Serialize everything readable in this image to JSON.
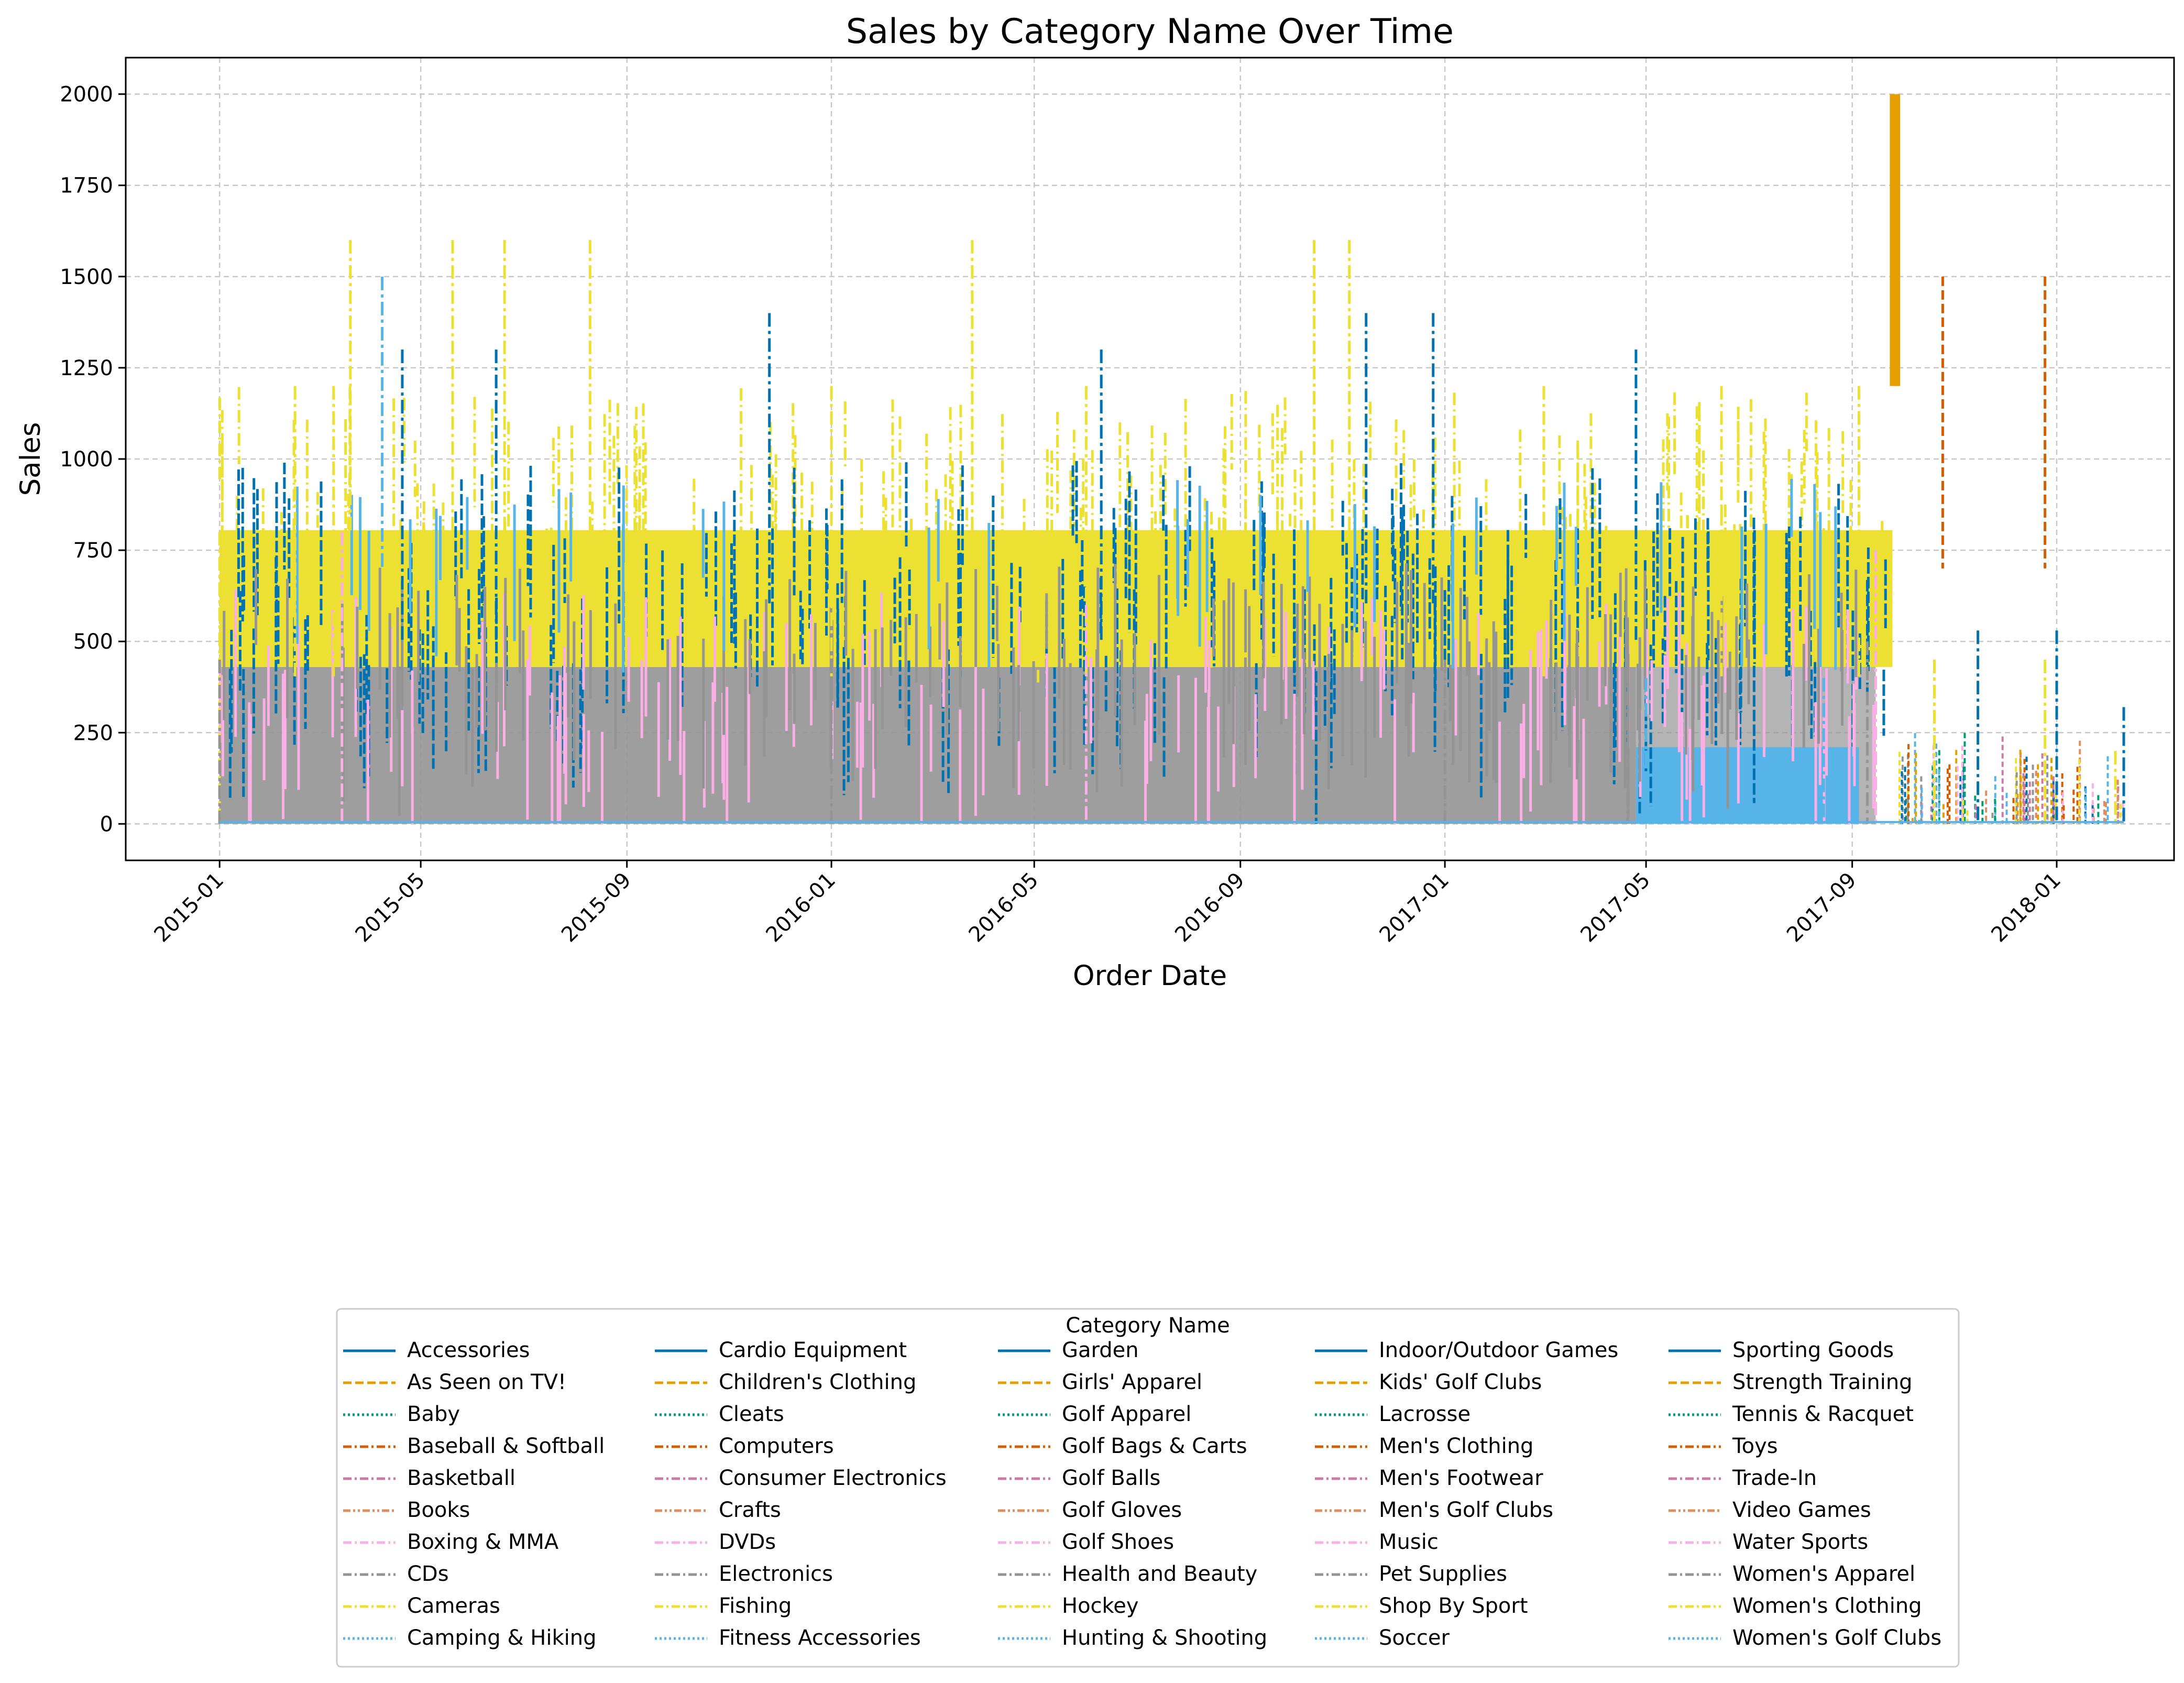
{
  "chart_data": {
    "type": "line",
    "title": "Sales by Category Name Over Time",
    "xlabel": "Order Date",
    "ylabel": "Sales",
    "x_range": [
      "2014-11-06",
      "2018-03-12"
    ],
    "ylim": [
      -100,
      2100
    ],
    "xticks": [
      "2015-01",
      "2015-05",
      "2015-09",
      "2016-01",
      "2016-05",
      "2016-09",
      "2017-01",
      "2017-05",
      "2017-09",
      "2018-01"
    ],
    "yticks": [
      0,
      250,
      500,
      750,
      1000,
      1250,
      1500,
      1750,
      2000
    ],
    "grid": true,
    "legend": {
      "title": "Category Name",
      "placement": "below-center",
      "columns": 5,
      "entries": [
        "Accessories",
        "As Seen on  TV!",
        "Baby",
        "Baseball & Softball",
        "Basketball",
        "Books",
        "Boxing & MMA",
        "CDs",
        "Cameras",
        "Camping & Hiking",
        "Cardio Equipment",
        "Children's Clothing",
        "Cleats",
        "Computers",
        "Consumer Electronics",
        "Crafts",
        "DVDs",
        "Electronics",
        "Fishing",
        "Fitness Accessories",
        "Garden",
        "Girls' Apparel",
        "Golf Apparel",
        "Golf Bags & Carts",
        "Golf Balls",
        "Golf Gloves",
        "Golf Shoes",
        "Health and Beauty",
        "Hockey",
        "Hunting & Shooting",
        "Indoor/Outdoor Games",
        "Kids' Golf Clubs",
        "Lacrosse",
        "Men's Clothing",
        "Men's Footwear",
        "Men's Golf Clubs",
        "Music",
        "Pet Supplies",
        "Shop By Sport",
        "Soccer",
        "Sporting Goods",
        "Strength Training",
        "Tennis & Racquet",
        "Toys",
        "Trade-In",
        "Video Games",
        "Water Sports",
        "Women's Apparel",
        "Women's Clothing",
        "Women's Golf Clubs"
      ]
    },
    "palette": [
      "#0072b2",
      "#e69f00",
      "#009e73",
      "#d55e00",
      "#cc79a7",
      "#de8f5f",
      "#fbafe4",
      "#949494",
      "#ece133",
      "#56b4e9"
    ],
    "dash_styles": [
      "solid",
      "dashed",
      "dotted",
      "dashdot",
      "dashdot",
      "dashdotdot",
      "dashdot",
      "dashdot",
      "dashdot",
      "dotted"
    ],
    "series": [
      {
        "name": "Cameras",
        "color": "#ece133",
        "values": [
          [
            "2015-01-01",
            800
          ],
          [
            "2015-02-15",
            1200
          ],
          [
            "2015-03-10",
            1200
          ],
          [
            "2015-03-20",
            1600
          ],
          [
            "2015-05-20",
            1600
          ],
          [
            "2015-06-20",
            1600
          ],
          [
            "2015-08-10",
            1600
          ],
          [
            "2016-01-01",
            1200
          ],
          [
            "2016-03-25",
            1600
          ],
          [
            "2016-06-01",
            1200
          ],
          [
            "2016-10-15",
            1600
          ],
          [
            "2016-11-05",
            1600
          ],
          [
            "2017-03-01",
            1200
          ],
          [
            "2017-06-15",
            1200
          ],
          [
            "2017-09-05",
            1200
          ],
          [
            "2017-10-20",
            450
          ],
          [
            "2017-12-25",
            450
          ],
          [
            "2018-02-05",
            200
          ]
        ]
      },
      {
        "name": "Accessories",
        "color": "#0072b2",
        "values": [
          [
            "2015-04-20",
            1300
          ],
          [
            "2015-06-15",
            1300
          ],
          [
            "2015-11-25",
            1400
          ],
          [
            "2016-06-10",
            1300
          ],
          [
            "2016-11-15",
            1400
          ],
          [
            "2016-12-25",
            1400
          ],
          [
            "2017-04-25",
            1300
          ],
          [
            "2017-11-15",
            530
          ],
          [
            "2018-01-01",
            530
          ],
          [
            "2018-02-10",
            320
          ]
        ]
      },
      {
        "name": "Fitness Accessories",
        "color": "#56b4e9",
        "values": [
          [
            "2015-04-08",
            1500
          ],
          [
            "2017-05-01",
            400
          ],
          [
            "2017-08-15",
            400
          ],
          [
            "2017-09-30",
            10
          ]
        ]
      },
      {
        "name": "Children's Clothing",
        "color": "#e69f00",
        "values": [
          [
            "2017-09-25",
            2000
          ],
          [
            "2017-09-28",
            2000
          ]
        ]
      },
      {
        "name": "Computers",
        "color": "#d55e00",
        "values": [
          [
            "2017-10-25",
            1500
          ],
          [
            "2017-12-25",
            1500
          ]
        ]
      },
      {
        "name": "Electronics",
        "color": "#949494",
        "values": [
          [
            "2015-01-01",
            450
          ],
          [
            "2016-01-01",
            450
          ],
          [
            "2017-01-01",
            450
          ],
          [
            "2017-04-20",
            500
          ],
          [
            "2017-09-10",
            500
          ]
        ]
      },
      {
        "name": "DVDs",
        "color": "#fbafe4",
        "values": [
          [
            "2015-03-15",
            800
          ],
          [
            "2016-06-01",
            600
          ],
          [
            "2017-09-15",
            750
          ]
        ]
      }
    ]
  }
}
